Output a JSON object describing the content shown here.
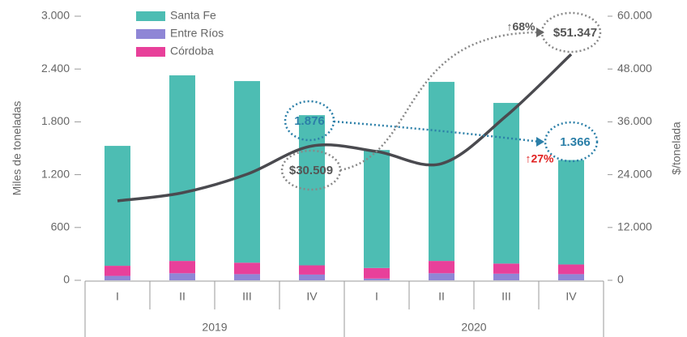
{
  "chart_data": {
    "type": "bar",
    "categories": [
      "I",
      "II",
      "III",
      "IV",
      "I",
      "II",
      "III",
      "IV"
    ],
    "groups": [
      "2019",
      "2020"
    ],
    "series": [
      {
        "name": "Santa Fe",
        "color": "#4dbdb3",
        "values": [
          1362,
          2108,
          2063,
          1706,
          1340,
          2034,
          1825,
          1186
        ]
      },
      {
        "name": "Entre Ríos",
        "color": "#8f86d6",
        "values": [
          50,
          80,
          70,
          65,
          20,
          80,
          75,
          70
        ]
      },
      {
        "name": "Córdoba",
        "color": "#e8409a",
        "values": [
          115,
          140,
          130,
          105,
          120,
          140,
          115,
          110
        ]
      }
    ],
    "line": {
      "color": "#4a4a4f",
      "axis": "y2",
      "values": [
        18037,
        19877,
        24110,
        30509,
        29264,
        26503,
        37362,
        51347
      ]
    },
    "ylabel": "Miles de toneladas",
    "y2label": "$/tonelada",
    "ylim": [
      0,
      3000
    ],
    "yticks": [
      0,
      600,
      {
        "value": 1200,
        "label": "1.200"
      },
      {
        "value": 1800,
        "label": "1.800"
      },
      {
        "value": 2400,
        "label": "2.400"
      },
      {
        "value": 3000,
        "label": "3.000"
      }
    ],
    "y2lim": [
      0,
      60000
    ],
    "y2ticks": [
      0,
      {
        "value": 12000,
        "label": "12.000"
      },
      {
        "value": 24000,
        "label": "24.000"
      },
      {
        "value": 36000,
        "label": "36.000"
      },
      {
        "value": 48000,
        "label": "48.000"
      },
      {
        "value": 60000,
        "label": "60.000"
      }
    ],
    "annotations": [
      "1.876",
      "1.366",
      "$30.509",
      "$51.347",
      "↑68%",
      "↑27%"
    ]
  }
}
